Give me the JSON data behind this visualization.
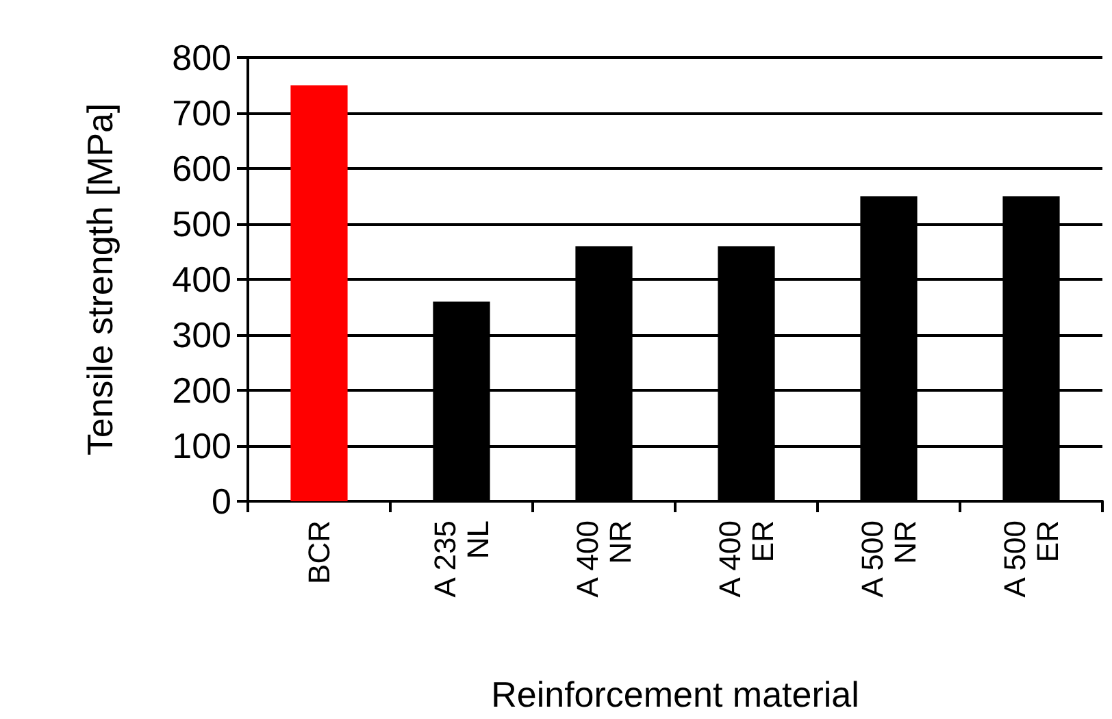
{
  "chart_data": {
    "type": "bar",
    "xlabel": "Reinforcement material",
    "ylabel": "Tensile strength [MPa]",
    "categories": [
      "BCR",
      "A 235 NL",
      "A 400 NR",
      "A 400 ER",
      "A 500 NR",
      "A 500 ER"
    ],
    "values": [
      750,
      360,
      460,
      460,
      550,
      550
    ],
    "colors": [
      "#ff0000",
      "#000000",
      "#000000",
      "#000000",
      "#000000",
      "#000000"
    ],
    "ylim": [
      0,
      800
    ],
    "yticks": [
      0,
      100,
      200,
      300,
      400,
      500,
      600,
      700,
      800
    ],
    "grid": "y"
  }
}
